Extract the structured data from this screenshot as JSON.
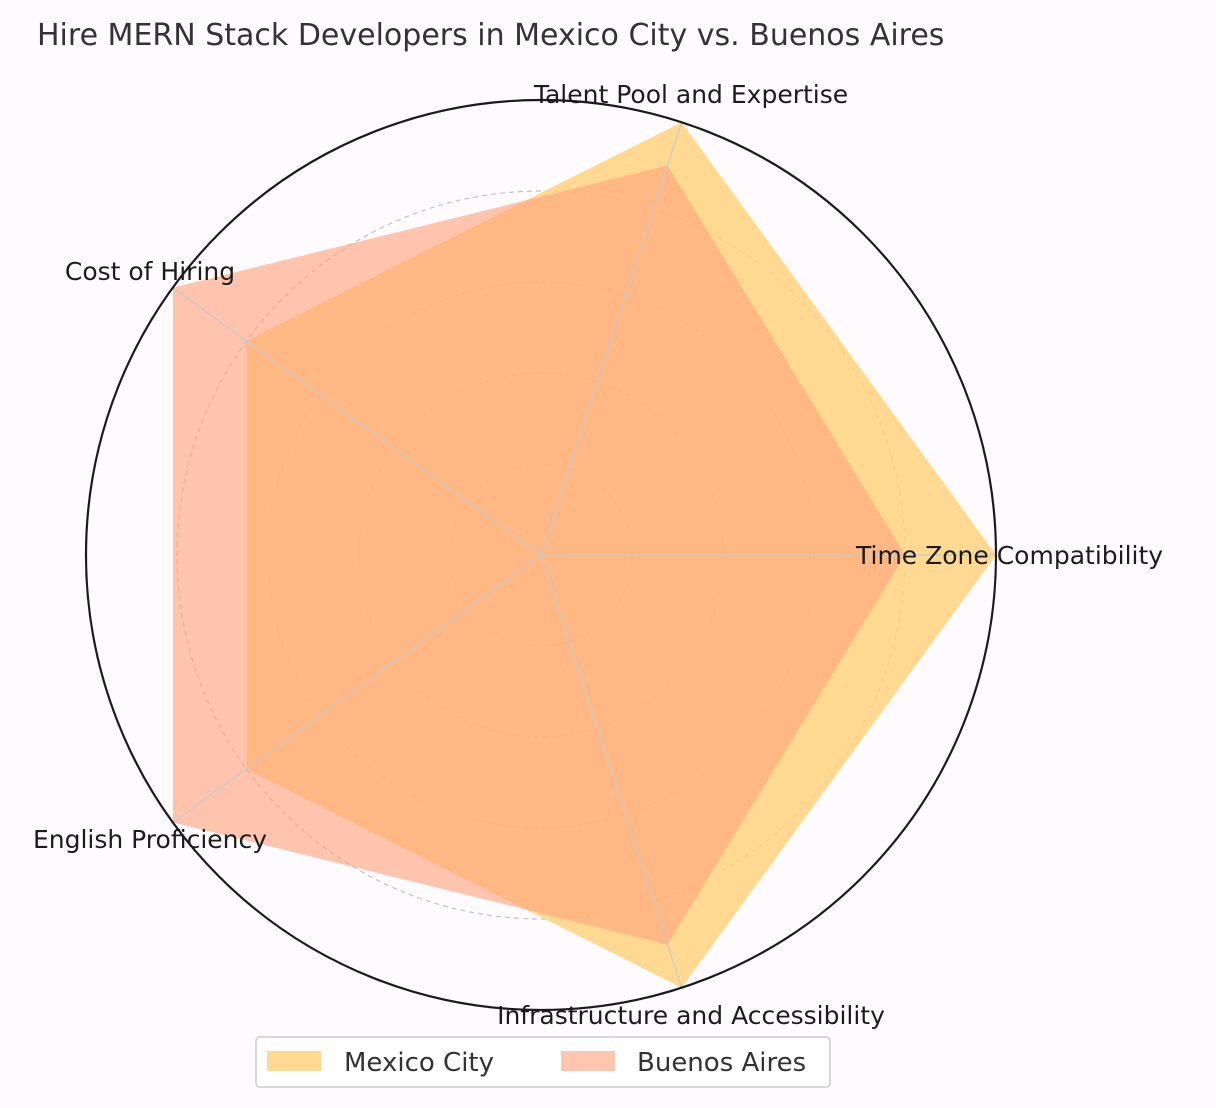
{
  "chart_data": {
    "type": "radar",
    "title": "Hire MERN Stack Developers in Mexico City vs. Buenos Aires",
    "categories": [
      "Time Zone Compatibility",
      "Talent Pool and Expertise",
      "Cost of Hiring",
      "English Proficiency",
      "Infrastructure and Accessibility"
    ],
    "series": [
      {
        "name": "Mexico City",
        "values": [
          10,
          10,
          8,
          8,
          10
        ],
        "color": "#ffd27f",
        "opacity": 0.85
      },
      {
        "name": "Buenos Aires",
        "values": [
          8,
          9,
          10,
          10,
          9
        ],
        "color": "#ffa07a",
        "opacity": 0.6
      }
    ],
    "rlim": [
      0,
      10
    ],
    "grid": true,
    "legend": "bottom-center"
  }
}
